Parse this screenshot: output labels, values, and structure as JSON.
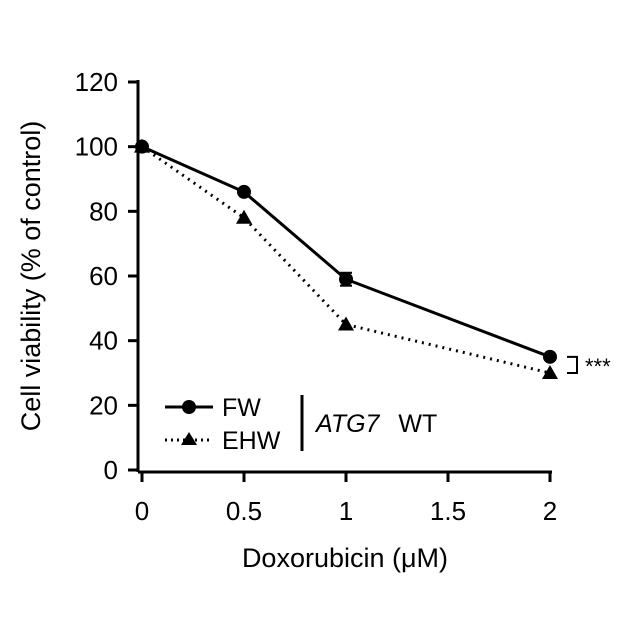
{
  "chart_data": {
    "type": "line",
    "xlabel": "Doxorubicin (μM)",
    "ylabel": "Cell viability (% of control)",
    "xlim": [
      0,
      2
    ],
    "ylim": [
      0,
      120
    ],
    "x_ticks": [
      "0",
      "0.5",
      "1",
      "1.5",
      "2"
    ],
    "y_ticks": [
      "0",
      "20",
      "40",
      "60",
      "80",
      "100",
      "120"
    ],
    "x_tick_values": [
      0,
      0.5,
      1,
      1.5,
      2
    ],
    "y_tick_values": [
      0,
      20,
      40,
      60,
      80,
      100,
      120
    ],
    "grid": false,
    "legend_position": "bottom-left",
    "series": [
      {
        "name": "FW",
        "marker": "circle",
        "line_style": "solid",
        "color": "#000000",
        "x": [
          0,
          0.5,
          1,
          2
        ],
        "values": [
          100,
          86,
          59,
          35
        ],
        "error": [
          0,
          0,
          2,
          0
        ]
      },
      {
        "name": "EHW",
        "marker": "triangle",
        "line_style": "dotted",
        "color": "#000000",
        "x": [
          0,
          0.5,
          1,
          2
        ],
        "values": [
          100,
          78,
          45,
          30
        ],
        "error": [
          0,
          0,
          0,
          0
        ]
      }
    ],
    "legend_group_label": {
      "gene": "ATG7",
      "status": "WT"
    },
    "significance": {
      "label": "***",
      "at_x": 2
    }
  }
}
